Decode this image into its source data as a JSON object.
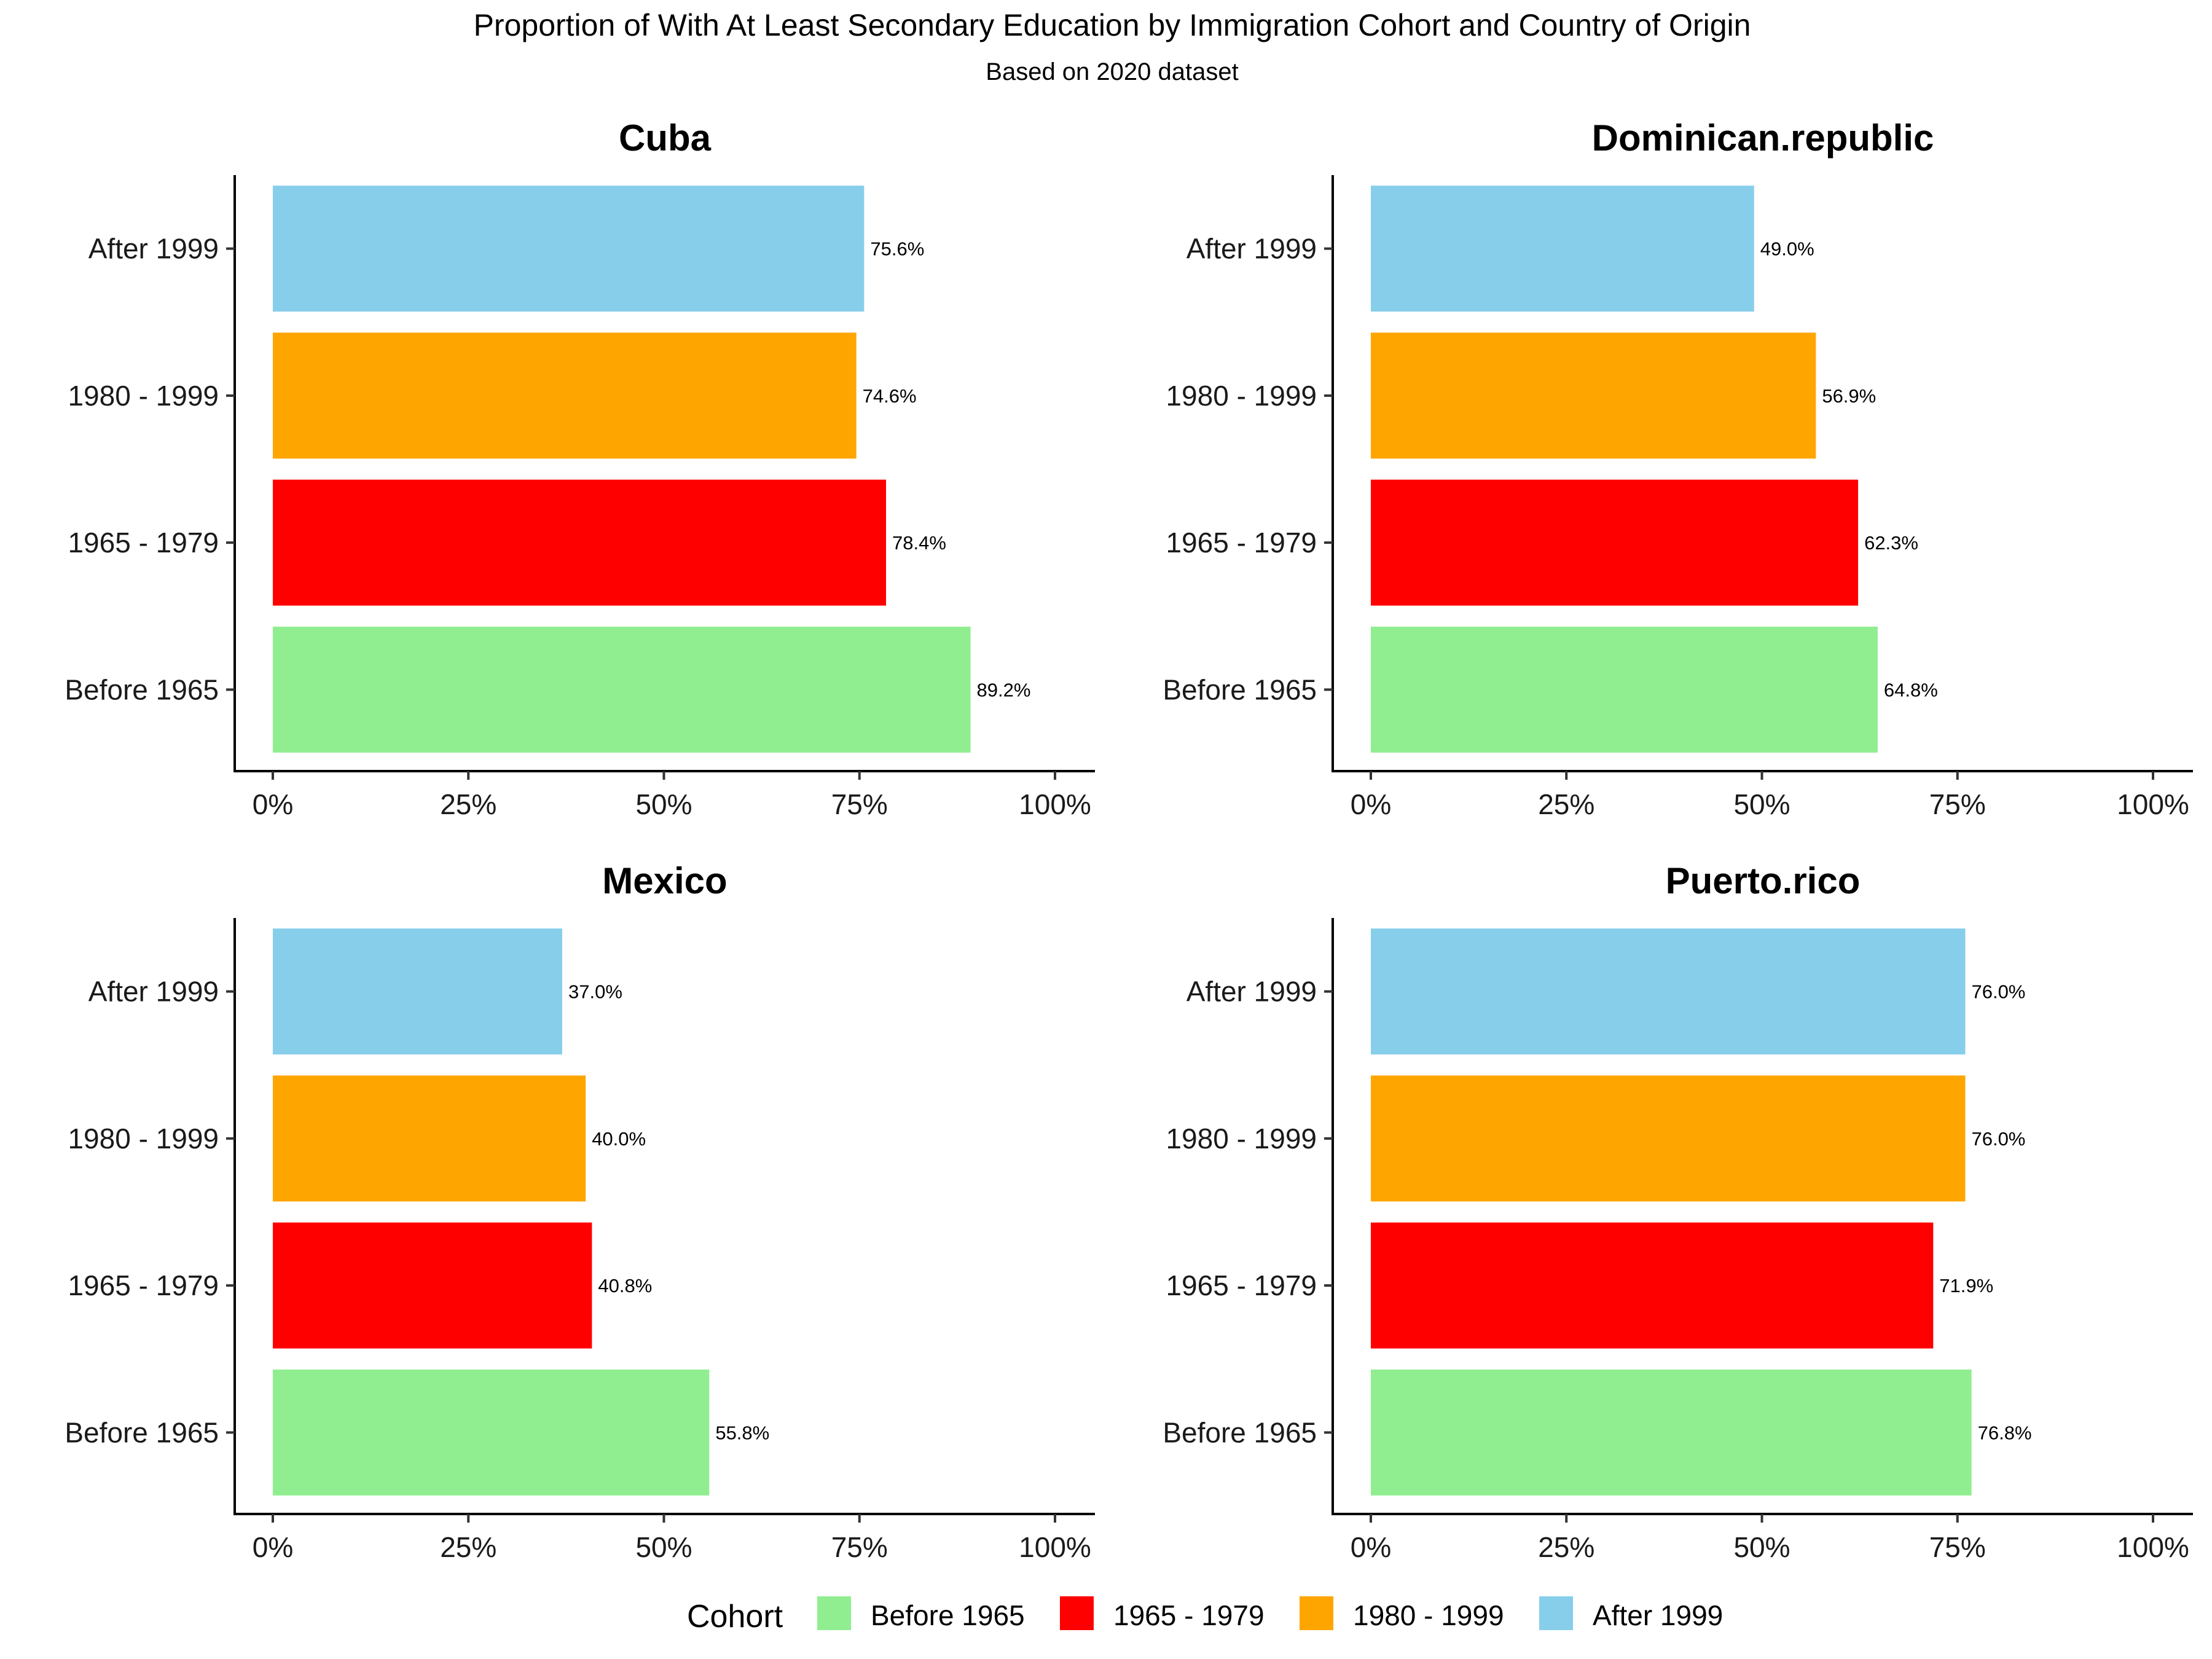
{
  "chart_data": {
    "type": "bar",
    "orientation": "horizontal",
    "title": "Proportion of With At Least Secondary Education by Immigration Cohort and Country of Origin",
    "subtitle": "Based on 2020 dataset",
    "xlim": [
      0,
      1
    ],
    "x_ticks": [
      "0%",
      "25%",
      "50%",
      "75%",
      "100%"
    ],
    "categories": [
      "Before 1965",
      "1965 - 1979",
      "1980 - 1999",
      "After 1999"
    ],
    "colors": {
      "Before 1965": "#90EE90",
      "1965 - 1979": "#FF0000",
      "1980 - 1999": "#FFA500",
      "After 1999": "#87CEEB"
    },
    "legend": {
      "title": "Cohort",
      "position": "bottom",
      "items": [
        "Before 1965",
        "1965 - 1979",
        "1980 - 1999",
        "After 1999"
      ]
    },
    "panels": [
      {
        "name": "Cuba",
        "values": [
          0.892,
          0.784,
          0.746,
          0.756
        ],
        "labels": [
          "89.2%",
          "78.4%",
          "74.6%",
          "75.6%"
        ]
      },
      {
        "name": "Dominican.republic",
        "values": [
          0.648,
          0.623,
          0.569,
          0.49
        ],
        "labels": [
          "64.8%",
          "62.3%",
          "56.9%",
          "49.0%"
        ]
      },
      {
        "name": "Mexico",
        "values": [
          0.558,
          0.408,
          0.4,
          0.37
        ],
        "labels": [
          "55.8%",
          "40.8%",
          "40.0%",
          "37.0%"
        ]
      },
      {
        "name": "Puerto.rico",
        "values": [
          0.768,
          0.719,
          0.76,
          0.76
        ],
        "labels": [
          "76.8%",
          "71.9%",
          "76.0%",
          "76.0%"
        ]
      }
    ]
  }
}
